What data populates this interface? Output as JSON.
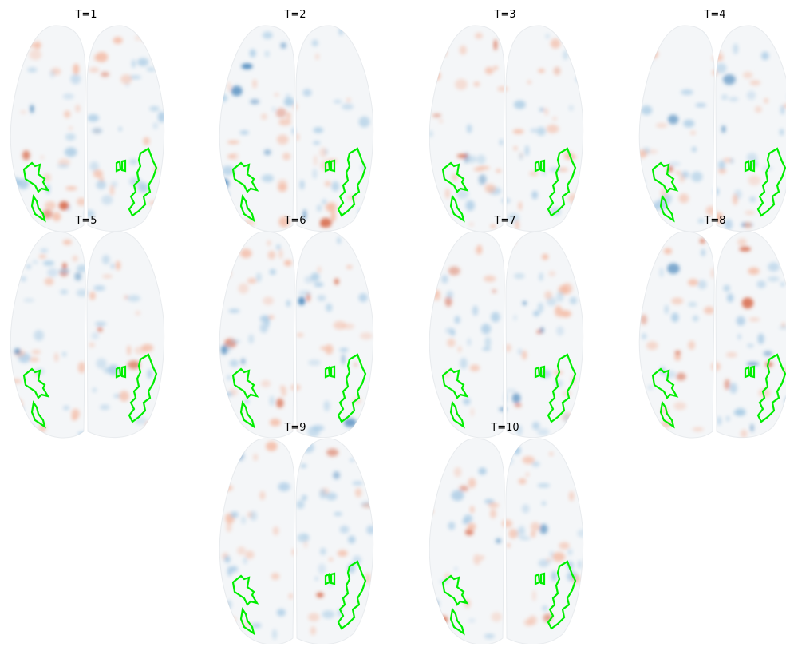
{
  "panels": [
    {
      "title": "T=1"
    },
    {
      "title": "T=2"
    },
    {
      "title": "T=3"
    },
    {
      "title": "T=4"
    },
    {
      "title": "T=5"
    },
    {
      "title": "T=6"
    },
    {
      "title": "T=7"
    },
    {
      "title": "T=8"
    },
    {
      "title": "T=9"
    },
    {
      "title": "T=10"
    }
  ]
}
